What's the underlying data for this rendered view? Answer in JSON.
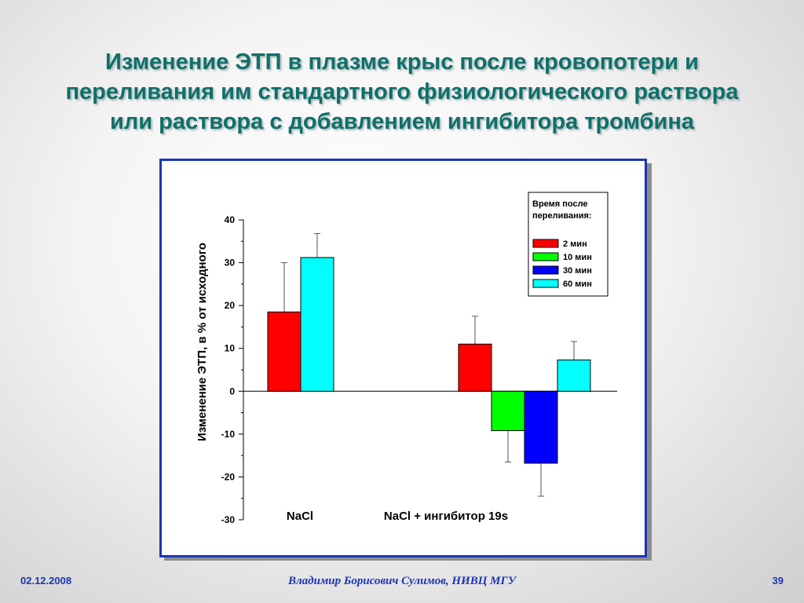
{
  "slide": {
    "title_lines": [
      "Изменение ЭТП в плазме крыс после кровопотери и",
      "переливания им стандартного физиологического раствора",
      "или раствора с добавлением ингибитора тромбина"
    ],
    "date": "02.12.2008",
    "author": "Владимир Борисович Сулимов, НИВЦ МГУ",
    "page_number": "39"
  },
  "colors": {
    "title": "#0e6f6a",
    "accent": "#1b35b8",
    "series": [
      "#ff0000",
      "#00ff00",
      "#0000ff",
      "#00ffff"
    ]
  },
  "chart_data": {
    "type": "bar",
    "title": "",
    "xlabel": "",
    "ylabel": "Изменение ЭТП,  в % от исходного",
    "ylim": [
      -30,
      40
    ],
    "yticks": [
      40,
      30,
      20,
      10,
      0,
      -10,
      -20,
      -30
    ],
    "grid": false,
    "legend_placement": "top-right",
    "legend_title_lines": [
      "Время после",
      "переливания:"
    ],
    "categories": [
      "NaCl",
      "NaCl + ингибитор 19s"
    ],
    "series": [
      {
        "name": "2 мин",
        "color": "#ff0000",
        "values": [
          18.5,
          11
        ],
        "errors": [
          11.5,
          6.5
        ]
      },
      {
        "name": "10 мин",
        "color": "#00ff00",
        "values": [
          null,
          -9.2
        ],
        "errors": [
          null,
          7.3
        ]
      },
      {
        "name": "30 мин",
        "color": "#0000ff",
        "values": [
          null,
          -16.8
        ],
        "errors": [
          null,
          7.7
        ]
      },
      {
        "name": "60 мин",
        "color": "#00ffff",
        "values": [
          31.2,
          7.3
        ],
        "errors": [
          5.6,
          4.3
        ]
      }
    ]
  }
}
